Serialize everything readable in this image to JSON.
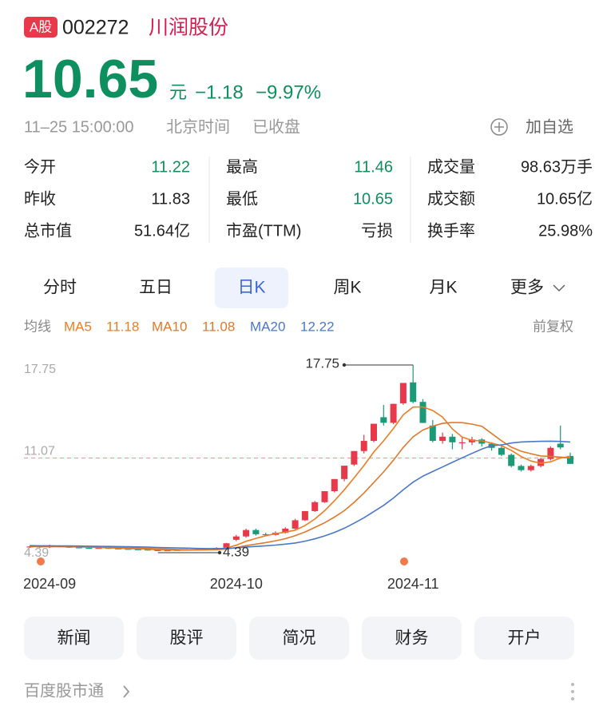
{
  "header": {
    "badge": "A股",
    "code": "002272",
    "name": "川润股份"
  },
  "quote": {
    "price": "10.65",
    "unit": "元",
    "change": "−1.18",
    "change_pct": "−9.97%",
    "datetime": "11–25 15:00:00",
    "timezone": "北京时间",
    "status": "已收盘",
    "watchlist": "加自选"
  },
  "stats": [
    [
      {
        "label": "今开",
        "value": "11.22",
        "color": "#0e8f5f"
      },
      {
        "label": "最高",
        "value": "11.46",
        "color": "#0e8f5f"
      },
      {
        "label": "成交量",
        "value": "98.63万手",
        "color": "#222222"
      }
    ],
    [
      {
        "label": "昨收",
        "value": "11.83",
        "color": "#222222"
      },
      {
        "label": "最低",
        "value": "10.65",
        "color": "#0e8f5f"
      },
      {
        "label": "成交额",
        "value": "10.65亿",
        "color": "#222222"
      }
    ],
    [
      {
        "label": "总市值",
        "value": "51.64亿",
        "color": "#222222"
      },
      {
        "label": "市盈(TTM)",
        "value": "亏损",
        "color": "#222222"
      },
      {
        "label": "换手率",
        "value": "25.98%",
        "color": "#222222"
      }
    ]
  ],
  "tabs": {
    "items": [
      "分时",
      "五日",
      "日K",
      "周K",
      "月K",
      "更多"
    ],
    "active": 2
  },
  "ma_legend": {
    "title": "均线",
    "adjust": "前复权"
  },
  "chart_data": {
    "type": "candlestick",
    "up_color": "#e8394a",
    "down_color": "#1b9a77",
    "ylim": [
      4.39,
      17.75
    ],
    "yticks": [
      17.75,
      4.39
    ],
    "ref_line": 11.07,
    "ref_color": "#f0a0a0",
    "max_label_index": 39,
    "min_label_index": 14,
    "categories": [
      null,
      null,
      "2024-09",
      null,
      null,
      null,
      null,
      null,
      null,
      null,
      null,
      null,
      null,
      null,
      null,
      null,
      null,
      null,
      null,
      null,
      null,
      "2024-10",
      null,
      null,
      null,
      null,
      null,
      null,
      null,
      null,
      null,
      null,
      null,
      null,
      null,
      null,
      null,
      null,
      null,
      "2024-11",
      null,
      null,
      null,
      null,
      null,
      null,
      null,
      null,
      null,
      null,
      null,
      null,
      null,
      null,
      null,
      null
    ],
    "candles": [
      {
        "open": 4.7,
        "close": 4.72,
        "high": 4.8,
        "low": 4.62
      },
      {
        "open": 4.72,
        "close": 4.68,
        "high": 4.78,
        "low": 4.62
      },
      {
        "open": 4.66,
        "close": 4.75,
        "high": 4.85,
        "low": 4.6
      },
      {
        "open": 4.75,
        "close": 4.7,
        "high": 4.8,
        "low": 4.66
      },
      {
        "open": 4.7,
        "close": 4.66,
        "high": 4.74,
        "low": 4.62
      },
      {
        "open": 4.66,
        "close": 4.62,
        "high": 4.7,
        "low": 4.58
      },
      {
        "open": 4.62,
        "close": 4.6,
        "high": 4.66,
        "low": 4.56
      },
      {
        "open": 4.6,
        "close": 4.62,
        "high": 4.66,
        "low": 4.56
      },
      {
        "open": 4.62,
        "close": 4.58,
        "high": 4.66,
        "low": 4.54
      },
      {
        "open": 4.58,
        "close": 4.55,
        "high": 4.62,
        "low": 4.52
      },
      {
        "open": 4.55,
        "close": 4.52,
        "high": 4.58,
        "low": 4.48
      },
      {
        "open": 4.52,
        "close": 4.5,
        "high": 4.56,
        "low": 4.46
      },
      {
        "open": 4.5,
        "close": 4.46,
        "high": 4.54,
        "low": 4.42
      },
      {
        "open": 4.46,
        "close": 4.44,
        "high": 4.5,
        "low": 4.4
      },
      {
        "open": 4.44,
        "close": 4.45,
        "high": 4.48,
        "low": 4.39
      },
      {
        "open": 4.45,
        "close": 4.47,
        "high": 4.5,
        "low": 4.42
      },
      {
        "open": 4.47,
        "close": 4.5,
        "high": 4.54,
        "low": 4.44
      },
      {
        "open": 4.5,
        "close": 4.48,
        "high": 4.54,
        "low": 4.44
      },
      {
        "open": 4.48,
        "close": 4.55,
        "high": 4.58,
        "low": 4.45
      },
      {
        "open": 4.55,
        "close": 4.62,
        "high": 4.66,
        "low": 4.5
      },
      {
        "open": 4.62,
        "close": 4.95,
        "high": 4.98,
        "low": 4.6
      },
      {
        "open": 5.2,
        "close": 5.44,
        "high": 5.55,
        "low": 5.1
      },
      {
        "open": 5.44,
        "close": 5.9,
        "high": 6.0,
        "low": 5.35
      },
      {
        "open": 5.9,
        "close": 5.6,
        "high": 6.0,
        "low": 5.5
      },
      {
        "open": 5.6,
        "close": 5.55,
        "high": 5.7,
        "low": 5.45
      },
      {
        "open": 5.55,
        "close": 5.7,
        "high": 5.8,
        "low": 5.5
      },
      {
        "open": 5.7,
        "close": 6.0,
        "high": 6.1,
        "low": 5.65
      },
      {
        "open": 6.0,
        "close": 6.6,
        "high": 6.7,
        "low": 5.95
      },
      {
        "open": 6.6,
        "close": 7.26,
        "high": 7.26,
        "low": 6.55
      },
      {
        "open": 7.26,
        "close": 7.9,
        "high": 7.99,
        "low": 7.2
      },
      {
        "open": 7.9,
        "close": 8.69,
        "high": 8.69,
        "low": 7.85
      },
      {
        "open": 8.69,
        "close": 9.56,
        "high": 9.56,
        "low": 8.6
      },
      {
        "open": 9.56,
        "close": 10.52,
        "high": 10.52,
        "low": 9.4
      },
      {
        "open": 10.6,
        "close": 11.57,
        "high": 11.57,
        "low": 10.5
      },
      {
        "open": 11.57,
        "close": 12.3,
        "high": 12.73,
        "low": 11.4
      },
      {
        "open": 12.3,
        "close": 13.53,
        "high": 13.53,
        "low": 12.2
      },
      {
        "open": 14.0,
        "close": 13.6,
        "high": 14.88,
        "low": 13.4
      },
      {
        "open": 13.6,
        "close": 14.96,
        "high": 14.96,
        "low": 13.5
      },
      {
        "open": 15.0,
        "close": 16.46,
        "high": 16.46,
        "low": 14.9
      },
      {
        "open": 16.5,
        "close": 15.1,
        "high": 17.75,
        "low": 15.0
      },
      {
        "open": 15.1,
        "close": 13.59,
        "high": 15.3,
        "low": 13.59
      },
      {
        "open": 13.4,
        "close": 12.3,
        "high": 13.8,
        "low": 12.2
      },
      {
        "open": 12.3,
        "close": 12.6,
        "high": 12.9,
        "low": 12.1
      },
      {
        "open": 12.6,
        "close": 12.2,
        "high": 12.8,
        "low": 11.7
      },
      {
        "open": 12.2,
        "close": 12.2,
        "high": 12.6,
        "low": 11.7
      },
      {
        "open": 12.2,
        "close": 12.4,
        "high": 12.6,
        "low": 12.0
      },
      {
        "open": 12.4,
        "close": 12.1,
        "high": 12.5,
        "low": 11.9
      },
      {
        "open": 12.1,
        "close": 11.8,
        "high": 12.2,
        "low": 11.6
      },
      {
        "open": 11.8,
        "close": 11.3,
        "high": 11.9,
        "low": 11.2
      },
      {
        "open": 11.3,
        "close": 10.5,
        "high": 11.4,
        "low": 10.4
      },
      {
        "open": 10.5,
        "close": 10.2,
        "high": 10.6,
        "low": 10.1
      },
      {
        "open": 10.2,
        "close": 10.5,
        "high": 10.6,
        "low": 10.1
      },
      {
        "open": 10.5,
        "close": 11.0,
        "high": 11.1,
        "low": 10.4
      },
      {
        "open": 11.0,
        "close": 11.8,
        "high": 11.9,
        "low": 10.9
      },
      {
        "open": 12.1,
        "close": 11.83,
        "high": 13.4,
        "low": 11.7
      },
      {
        "open": 11.22,
        "close": 10.65,
        "high": 11.46,
        "low": 10.65
      }
    ],
    "series": [
      {
        "name": "MA5",
        "color": "#ee7d22",
        "values": [
          4.72,
          4.7,
          4.71,
          4.71,
          4.7,
          4.68,
          4.67,
          4.64,
          4.62,
          4.59,
          4.57,
          4.55,
          4.52,
          4.49,
          4.47,
          4.46,
          4.46,
          4.47,
          4.49,
          4.52,
          4.62,
          4.81,
          5.09,
          5.3,
          5.49,
          5.64,
          5.75,
          5.89,
          6.22,
          6.69,
          7.29,
          8.0,
          8.79,
          9.65,
          10.53,
          11.5,
          12.3,
          13.19,
          14.17,
          14.73,
          14.74,
          14.48,
          14.01,
          13.16,
          12.58,
          12.34,
          12.3,
          12.14,
          11.96,
          11.62,
          11.18,
          10.86,
          10.7,
          10.8,
          11.07,
          11.18
        ]
      },
      {
        "name": "MA10",
        "color": "#e0782a",
        "values": [
          4.73,
          4.72,
          4.72,
          4.71,
          4.71,
          4.7,
          4.69,
          4.68,
          4.66,
          4.64,
          4.62,
          4.6,
          4.58,
          4.55,
          4.53,
          4.51,
          4.49,
          4.48,
          4.48,
          4.49,
          4.54,
          4.64,
          4.78,
          4.89,
          5.0,
          5.13,
          5.28,
          5.49,
          5.76,
          6.09,
          6.42,
          6.83,
          7.29,
          7.89,
          8.56,
          9.31,
          10.07,
          10.91,
          11.83,
          12.59,
          13.08,
          13.36,
          13.56,
          13.62,
          13.61,
          13.5,
          13.35,
          12.83,
          12.31,
          11.85,
          11.56,
          11.38,
          11.22,
          11.18,
          11.14,
          11.08
        ]
      },
      {
        "name": "MA20",
        "color": "#4a78c8",
        "values": [
          4.78,
          4.77,
          4.77,
          4.76,
          4.76,
          4.75,
          4.74,
          4.73,
          4.72,
          4.71,
          4.7,
          4.69,
          4.67,
          4.65,
          4.63,
          4.62,
          4.6,
          4.58,
          4.57,
          4.57,
          4.58,
          4.62,
          4.68,
          4.72,
          4.77,
          4.82,
          4.89,
          4.97,
          5.1,
          5.27,
          5.48,
          5.73,
          6.03,
          6.39,
          6.78,
          7.22,
          7.67,
          8.2,
          8.79,
          9.34,
          9.77,
          10.1,
          10.43,
          10.76,
          11.09,
          11.4,
          11.71,
          11.96,
          12.01,
          12.15,
          12.22,
          12.25,
          12.27,
          12.28,
          12.26,
          12.22
        ]
      }
    ]
  },
  "actions": [
    "新闻",
    "股评",
    "简况",
    "财务",
    "开户"
  ],
  "footer": "百度股市通"
}
